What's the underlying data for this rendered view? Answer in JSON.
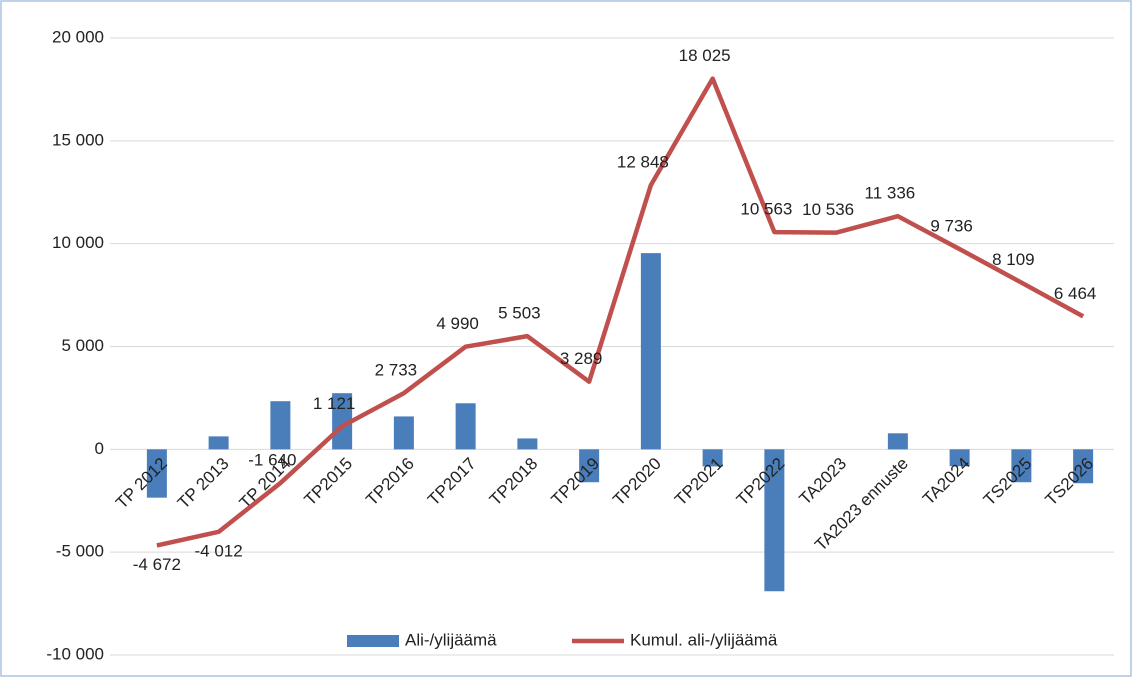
{
  "chart_data": {
    "type": "bar_line",
    "categories": [
      "TP 2012",
      "TP 2013",
      "TP 2014",
      "TP2015",
      "TP2016",
      "TP2017",
      "TP2018",
      "TP2019",
      "TP2020",
      "TP2021",
      "TP2022",
      "TA2023",
      "TA2023 ennuste",
      "TA2024",
      "TS2025",
      "TS2026"
    ],
    "series": [
      {
        "name": "Ali-/ylijäämä",
        "type": "bar",
        "color": "#4a7ebb",
        "values": [
          -2350,
          630,
          2340,
          2730,
          1600,
          2240,
          530,
          -1600,
          9540,
          -830,
          -6900,
          0,
          780,
          -820,
          -1600,
          -1650
        ]
      },
      {
        "name": "Kumul. ali-/ylijäämä",
        "type": "line",
        "color": "#c0504d",
        "values": [
          -4672,
          -4012,
          -1640,
          1121,
          2733,
          4990,
          5503,
          3289,
          12848,
          18025,
          10563,
          10536,
          11336,
          9736,
          8109,
          6464
        ],
        "value_labels": [
          "-4 672",
          "-4 012",
          "-1 640",
          "1 121",
          "2 733",
          "4 990",
          "5 503",
          "3 289",
          "12 848",
          "18 025",
          "10 563",
          "10 536",
          "11 336",
          "9 736",
          "8 109",
          "6 464"
        ]
      }
    ],
    "ylim": [
      -10000,
      20000
    ],
    "yticks": [
      {
        "value": -10000,
        "label": "-10 000"
      },
      {
        "value": -5000,
        "label": "-5 000"
      },
      0,
      {
        "value": 5000,
        "label": "5 000"
      },
      {
        "value": 10000,
        "label": "10 000"
      },
      {
        "value": 15000,
        "label": "15 000"
      },
      {
        "value": 20000,
        "label": "20 000"
      }
    ],
    "grid": true,
    "legend": "bottom"
  }
}
